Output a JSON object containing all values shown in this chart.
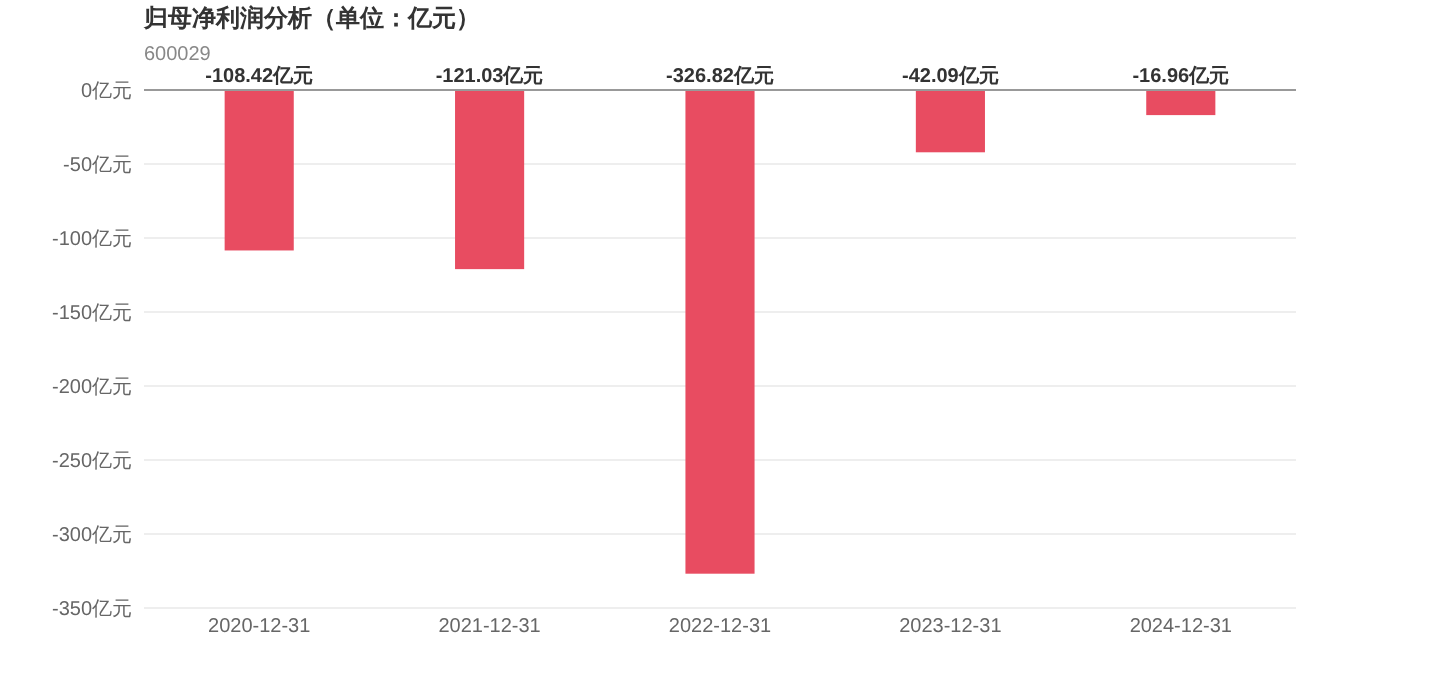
{
  "chart_data": {
    "type": "bar",
    "title": "归母净利润分析（单位：亿元）",
    "subtitle": "600029",
    "categories": [
      "2020-12-31",
      "2021-12-31",
      "2022-12-31",
      "2023-12-31",
      "2024-12-31"
    ],
    "values": [
      -108.42,
      -121.03,
      -326.82,
      -42.09,
      -16.96
    ],
    "value_labels": [
      "-108.42亿元",
      "-121.03亿元",
      "-326.82亿元",
      "-42.09亿元",
      "-16.96亿元"
    ],
    "color": "#e84c61",
    "ylim": [
      -350,
      0
    ],
    "yticks": [
      {
        "value": 0,
        "label": "0亿元"
      },
      {
        "value": -50,
        "label": "-50亿元"
      },
      {
        "value": -100,
        "label": "-100亿元"
      },
      {
        "value": -150,
        "label": "-150亿元"
      },
      {
        "value": -200,
        "label": "-200亿元"
      },
      {
        "value": -250,
        "label": "-250亿元"
      },
      {
        "value": -300,
        "label": "-300亿元"
      },
      {
        "value": -350,
        "label": "-350亿元"
      }
    ],
    "grid": "y"
  }
}
